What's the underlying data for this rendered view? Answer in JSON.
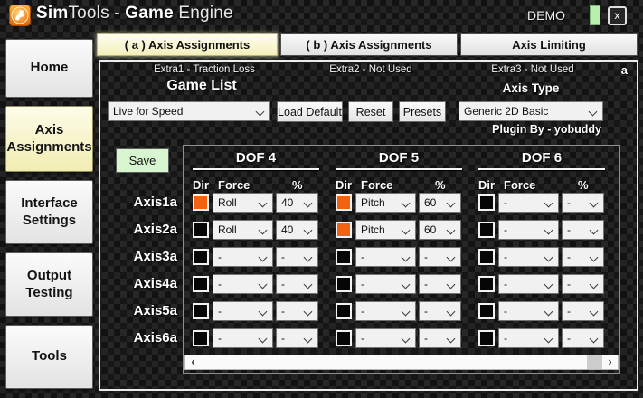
{
  "titlebar": {
    "title_segments": [
      {
        "text": "Sim",
        "bold": true
      },
      {
        "text": "Tools - ",
        "bold": false
      },
      {
        "text": "Game",
        "bold": true
      },
      {
        "text": " Engine",
        "bold": false
      }
    ],
    "demo_label": "DEMO",
    "close_label": "x"
  },
  "sidebar": {
    "items": [
      {
        "label": "Home",
        "active": false
      },
      {
        "label": "Axis Assignments",
        "active": true
      },
      {
        "label": "Interface Settings",
        "active": false
      },
      {
        "label": "Output Testing",
        "active": false
      },
      {
        "label": "Tools",
        "active": false
      }
    ]
  },
  "tabs": [
    {
      "label": "( a ) Axis Assignments",
      "active": true
    },
    {
      "label": "( b ) Axis Assignments",
      "active": false
    },
    {
      "label": "Axis Limiting",
      "active": false
    }
  ],
  "header": {
    "extras": [
      "Extra1 - Traction Loss",
      "Extra2 - Not Used",
      "Extra3 - Not Used"
    ],
    "corner_marker": "a",
    "game_list_label": "Game List",
    "game_selected": "Live for Speed",
    "load_default_label": "Load Default",
    "reset_label": "Reset",
    "presets_label": "Presets",
    "axis_type_label": "Axis Type",
    "axis_type_selected": "Generic 2D Basic",
    "plugin_by": "Plugin By - yobuddy",
    "save_label": "Save"
  },
  "table": {
    "dof_headers": [
      "DOF 4",
      "DOF 5",
      "DOF 6"
    ],
    "col_headers": [
      "Dir",
      "Force",
      "%"
    ],
    "rows": [
      {
        "axis": "Axis1a",
        "cells": [
          {
            "dir_checked": true,
            "force": "Roll",
            "percent": "40"
          },
          {
            "dir_checked": true,
            "force": "Pitch",
            "percent": "60"
          },
          {
            "dir_checked": false,
            "force": "-",
            "percent": "-"
          }
        ]
      },
      {
        "axis": "Axis2a",
        "cells": [
          {
            "dir_checked": false,
            "force": "Roll",
            "percent": "40"
          },
          {
            "dir_checked": true,
            "force": "Pitch",
            "percent": "60"
          },
          {
            "dir_checked": false,
            "force": "-",
            "percent": "-"
          }
        ]
      },
      {
        "axis": "Axis3a",
        "cells": [
          {
            "dir_checked": false,
            "force": "-",
            "percent": "-"
          },
          {
            "dir_checked": false,
            "force": "-",
            "percent": "-"
          },
          {
            "dir_checked": false,
            "force": "-",
            "percent": "-"
          }
        ]
      },
      {
        "axis": "Axis4a",
        "cells": [
          {
            "dir_checked": false,
            "force": "-",
            "percent": "-"
          },
          {
            "dir_checked": false,
            "force": "-",
            "percent": "-"
          },
          {
            "dir_checked": false,
            "force": "-",
            "percent": "-"
          }
        ]
      },
      {
        "axis": "Axis5a",
        "cells": [
          {
            "dir_checked": false,
            "force": "-",
            "percent": "-"
          },
          {
            "dir_checked": false,
            "force": "-",
            "percent": "-"
          },
          {
            "dir_checked": false,
            "force": "-",
            "percent": "-"
          }
        ]
      },
      {
        "axis": "Axis6a",
        "cells": [
          {
            "dir_checked": false,
            "force": "-",
            "percent": "-"
          },
          {
            "dir_checked": false,
            "force": "-",
            "percent": "-"
          },
          {
            "dir_checked": false,
            "force": "-",
            "percent": "-"
          }
        ]
      }
    ]
  },
  "scrollbar": {
    "left_arrow": "‹",
    "right_arrow": "›"
  },
  "colors": {
    "accent_orange": "#f26211",
    "save_green": "#d7f6cf",
    "led_green": "#b9efae",
    "active_yellow": "#f3efbb",
    "panel_border": "#ececec"
  }
}
